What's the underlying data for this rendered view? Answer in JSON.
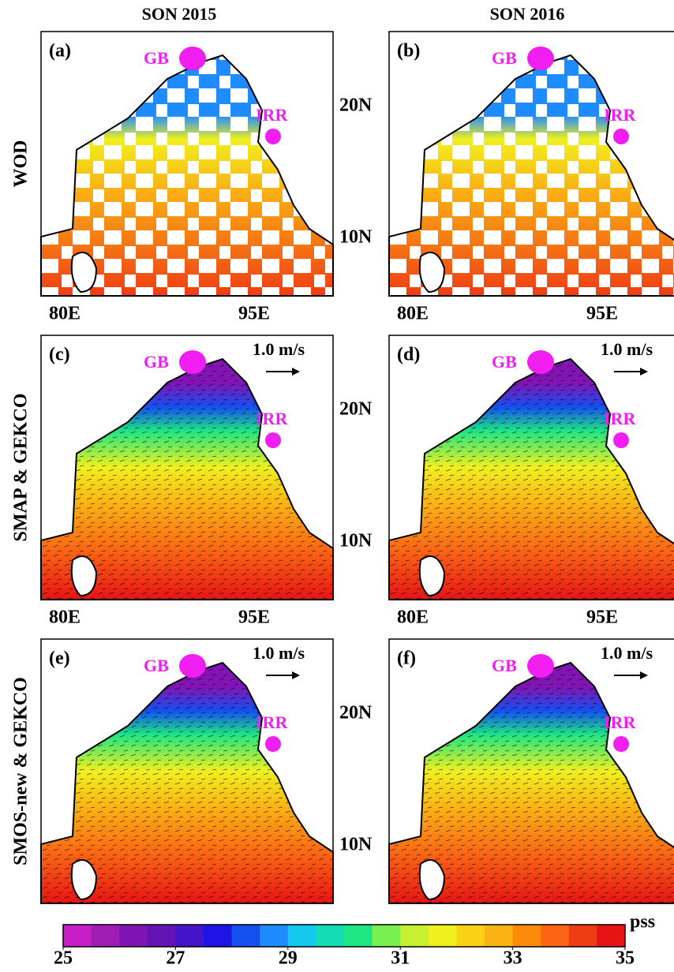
{
  "columns": [
    "SON 2015",
    "SON 2016"
  ],
  "rows": [
    "WOD",
    "SMAP & GEKCO",
    "SMOS-new & GEKCO"
  ],
  "panels": [
    {
      "label": "(a)",
      "gb": "GB",
      "irr": "IRR"
    },
    {
      "label": "(b)",
      "gb": "GB",
      "irr": "IRR"
    },
    {
      "label": "(c)",
      "gb": "GB",
      "irr": "IRR",
      "vector_scale": "1.0 m/s"
    },
    {
      "label": "(d)",
      "gb": "GB",
      "irr": "IRR",
      "vector_scale": "1.0 m/s"
    },
    {
      "label": "(e)",
      "gb": "GB",
      "irr": "IRR",
      "vector_scale": "1.0 m/s"
    },
    {
      "label": "(f)",
      "gb": "GB",
      "irr": "IRR",
      "vector_scale": "1.0 m/s"
    }
  ],
  "lat_labels": [
    "20N",
    "10N"
  ],
  "lon_labels": [
    "80E",
    "95E"
  ],
  "colorbar": {
    "range": [
      25,
      35
    ],
    "ticks": [
      25,
      27,
      29,
      31,
      33,
      35
    ],
    "unit": "pss",
    "colors": [
      "#c81ec8",
      "#a01eb4",
      "#8214b4",
      "#6414b4",
      "#4614c8",
      "#1e14e6",
      "#1450f0",
      "#1e8cff",
      "#14c8f0",
      "#14dcb4",
      "#1ee682",
      "#78f050",
      "#c8f032",
      "#f0f01e",
      "#fad214",
      "#fab414",
      "#fa8c0a",
      "#fa6414",
      "#f03c14",
      "#e61414"
    ]
  }
}
